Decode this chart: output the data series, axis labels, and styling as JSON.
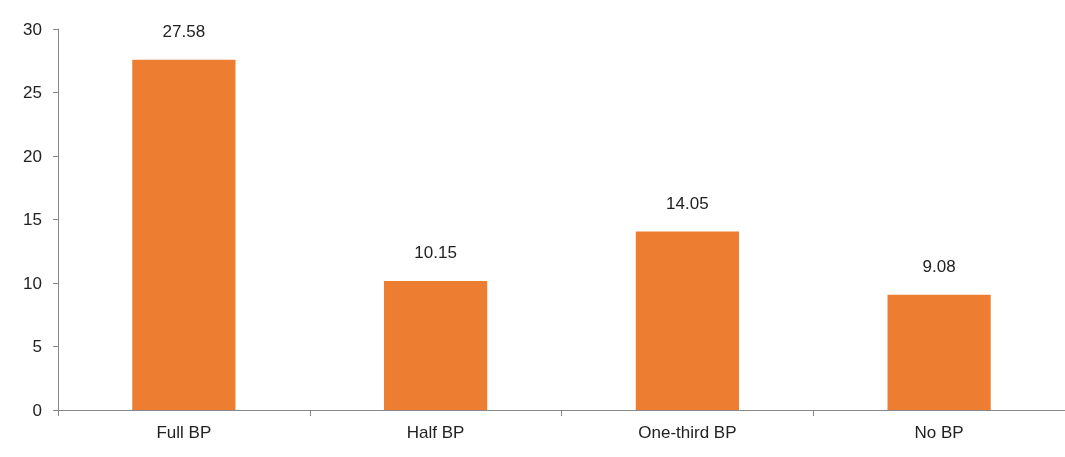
{
  "chart_data": {
    "type": "bar",
    "categories": [
      "Full BP",
      "Half BP",
      "One-third BP",
      "No BP"
    ],
    "values": [
      27.58,
      10.15,
      14.05,
      9.08
    ],
    "color": "#ed7d31",
    "ylim": [
      0,
      30
    ],
    "yticks": [
      0,
      5,
      10,
      15,
      20,
      25,
      30
    ],
    "grid": false,
    "data_labels": true
  }
}
